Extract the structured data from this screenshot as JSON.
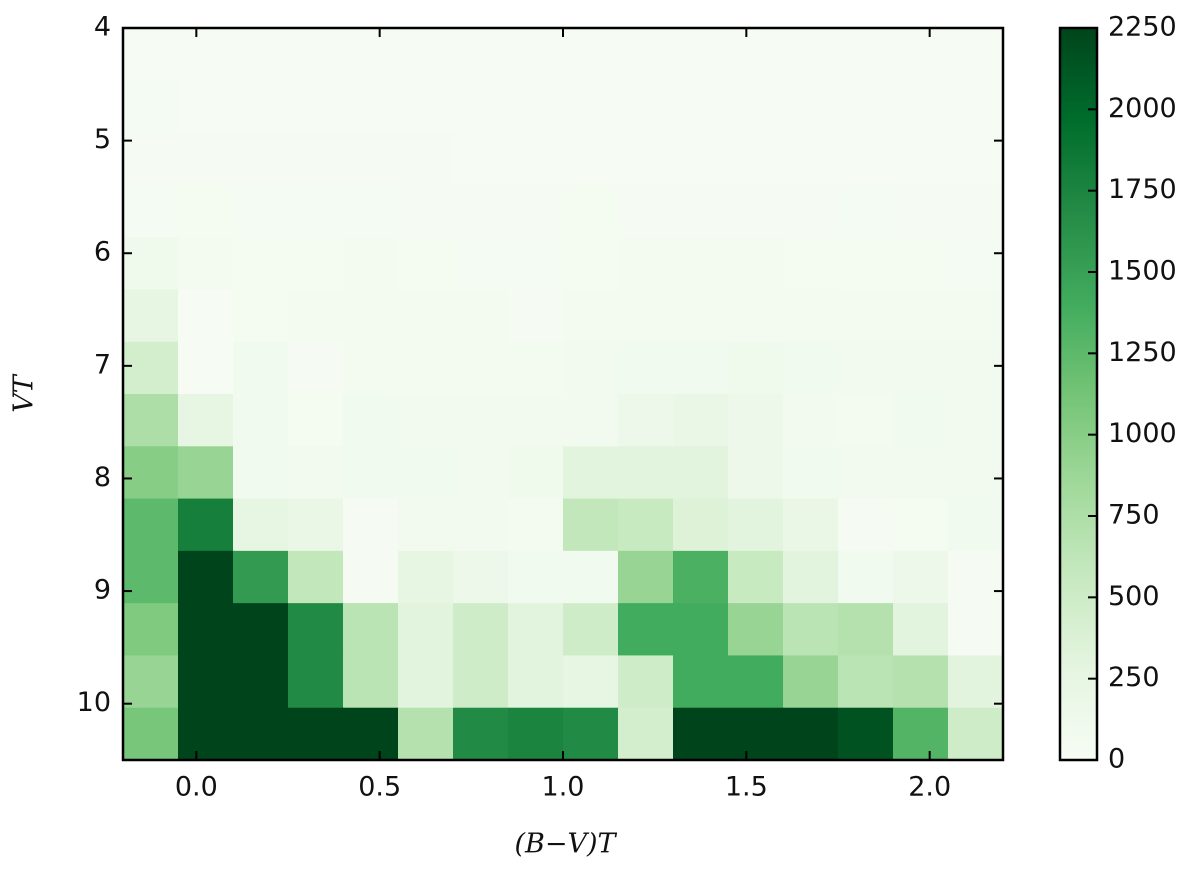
{
  "chart_data": {
    "type": "heatmap",
    "xlabel": "(B−V)T",
    "ylabel": "VT",
    "xlim": [
      -0.2,
      2.2
    ],
    "ylim": [
      10.5,
      4
    ],
    "xticks": [
      {
        "value": 0,
        "label": "0.0"
      },
      0.5,
      {
        "value": 1,
        "label": "1.0"
      },
      1.5,
      {
        "value": 2,
        "label": "2.0"
      }
    ],
    "yticks": [
      4,
      5,
      6,
      7,
      8,
      9,
      10
    ],
    "colormap": [
      "#f7fcf5",
      "#e5f5e0",
      "#c7e9c0",
      "#a1d99b",
      "#74c476",
      "#41ab5d",
      "#238b45",
      "#006d2c",
      "#00441b"
    ],
    "zlim": [
      0,
      2250
    ],
    "zticks": [
      0,
      250,
      500,
      750,
      1000,
      1250,
      1500,
      1750,
      2000,
      2250
    ],
    "z": [
      [
        20,
        15,
        15,
        15,
        15,
        15,
        15,
        15,
        15,
        15,
        15,
        15,
        15,
        15,
        15,
        15
      ],
      [
        40,
        15,
        15,
        15,
        15,
        15,
        15,
        15,
        15,
        15,
        15,
        15,
        15,
        15,
        15,
        15
      ],
      [
        30,
        25,
        25,
        30,
        30,
        25,
        20,
        20,
        20,
        20,
        20,
        20,
        20,
        20,
        20,
        20
      ],
      [
        40,
        50,
        40,
        40,
        40,
        30,
        30,
        30,
        50,
        30,
        30,
        30,
        30,
        40,
        30,
        30
      ],
      [
        120,
        60,
        50,
        50,
        60,
        50,
        40,
        40,
        50,
        60,
        60,
        60,
        50,
        50,
        50,
        40
      ],
      [
        250,
        10,
        50,
        60,
        60,
        60,
        60,
        30,
        60,
        70,
        70,
        70,
        70,
        60,
        60,
        60
      ],
      [
        450,
        20,
        100,
        30,
        60,
        60,
        60,
        60,
        80,
        100,
        100,
        120,
        100,
        80,
        80,
        80
      ],
      [
        750,
        250,
        100,
        50,
        100,
        80,
        80,
        80,
        80,
        150,
        200,
        150,
        80,
        60,
        100,
        80
      ],
      [
        1000,
        900,
        100,
        80,
        100,
        100,
        80,
        120,
        300,
        300,
        300,
        150,
        100,
        80,
        80,
        80
      ],
      [
        1250,
        1800,
        250,
        200,
        30,
        80,
        80,
        60,
        600,
        550,
        350,
        300,
        200,
        30,
        50,
        100
      ],
      [
        1250,
        2400,
        1550,
        600,
        30,
        250,
        150,
        100,
        100,
        900,
        1350,
        550,
        300,
        100,
        150,
        30
      ],
      [
        1050,
        2400,
        2400,
        1700,
        650,
        300,
        500,
        300,
        500,
        1400,
        1400,
        900,
        650,
        700,
        300,
        30
      ],
      [
        900,
        2400,
        2400,
        1700,
        650,
        300,
        500,
        300,
        250,
        500,
        1400,
        1400,
        900,
        650,
        700,
        300
      ],
      [
        1100,
        2400,
        2400,
        2400,
        2400,
        700,
        1700,
        1750,
        1700,
        450,
        2400,
        2400,
        2400,
        2150,
        1300,
        500
      ]
    ]
  }
}
